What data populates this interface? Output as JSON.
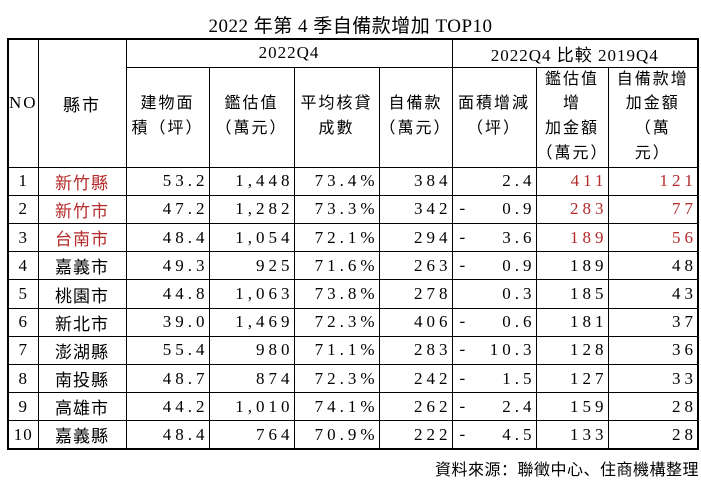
{
  "page": {
    "background": "#ffffff"
  },
  "colors": {
    "highlight_red": "#b52a2a",
    "border": "#000000",
    "text": "#000000"
  },
  "chart_data": {
    "type": "table",
    "title": "2022 年第 4 季自備款增加 TOP10",
    "source_note": "資料來源：聯徵中心、住商機構整理",
    "legend_position": "none",
    "grid": true,
    "column_groups": [
      {
        "label": "2022Q4",
        "span": 4
      },
      {
        "label": "2022Q4  比較  2019Q4",
        "span": 3
      }
    ],
    "columns": [
      "NO.",
      "縣市",
      "建物面\n積（坪）",
      "鑑估值\n（萬元）",
      "平均核貸\n成數",
      "自備款\n（萬元）",
      "面積增減\n（坪）",
      "鑑估值增\n加金額\n（萬元）",
      "自備款增\n加金額（萬\n元）"
    ],
    "rows": [
      {
        "no": 1,
        "county": "新竹縣",
        "building_area": 53.2,
        "appraisal": 1448,
        "loan_ratio": 73.4,
        "down_payment": 384,
        "area_change": 2.4,
        "appraisal_change": 411,
        "down_payment_change": 121,
        "highlight": true
      },
      {
        "no": 2,
        "county": "新竹市",
        "building_area": 47.2,
        "appraisal": 1282,
        "loan_ratio": 73.3,
        "down_payment": 342,
        "area_change": -0.9,
        "appraisal_change": 283,
        "down_payment_change": 77,
        "highlight": true
      },
      {
        "no": 3,
        "county": "台南市",
        "building_area": 48.4,
        "appraisal": 1054,
        "loan_ratio": 72.1,
        "down_payment": 294,
        "area_change": -3.6,
        "appraisal_change": 189,
        "down_payment_change": 56,
        "highlight": true
      },
      {
        "no": 4,
        "county": "嘉義市",
        "building_area": 49.3,
        "appraisal": 925,
        "loan_ratio": 71.6,
        "down_payment": 263,
        "area_change": -0.9,
        "appraisal_change": 189,
        "down_payment_change": 48,
        "highlight": false
      },
      {
        "no": 5,
        "county": "桃園市",
        "building_area": 44.8,
        "appraisal": 1063,
        "loan_ratio": 73.8,
        "down_payment": 278,
        "area_change": 0.3,
        "appraisal_change": 185,
        "down_payment_change": 43,
        "highlight": false
      },
      {
        "no": 6,
        "county": "新北市",
        "building_area": 39.0,
        "appraisal": 1469,
        "loan_ratio": 72.3,
        "down_payment": 406,
        "area_change": -0.6,
        "appraisal_change": 181,
        "down_payment_change": 37,
        "highlight": false
      },
      {
        "no": 7,
        "county": "澎湖縣",
        "building_area": 55.4,
        "appraisal": 980,
        "loan_ratio": 71.1,
        "down_payment": 283,
        "area_change": -10.3,
        "appraisal_change": 128,
        "down_payment_change": 36,
        "highlight": false
      },
      {
        "no": 8,
        "county": "南投縣",
        "building_area": 48.7,
        "appraisal": 874,
        "loan_ratio": 72.3,
        "down_payment": 242,
        "area_change": -1.5,
        "appraisal_change": 127,
        "down_payment_change": 33,
        "highlight": false
      },
      {
        "no": 9,
        "county": "高雄市",
        "building_area": 44.2,
        "appraisal": 1010,
        "loan_ratio": 74.1,
        "down_payment": 262,
        "area_change": -2.4,
        "appraisal_change": 159,
        "down_payment_change": 28,
        "highlight": false
      },
      {
        "no": 10,
        "county": "嘉義縣",
        "building_area": 48.4,
        "appraisal": 764,
        "loan_ratio": 70.9,
        "down_payment": 222,
        "area_change": -4.5,
        "appraisal_change": 133,
        "down_payment_change": 28,
        "highlight": false
      }
    ]
  }
}
